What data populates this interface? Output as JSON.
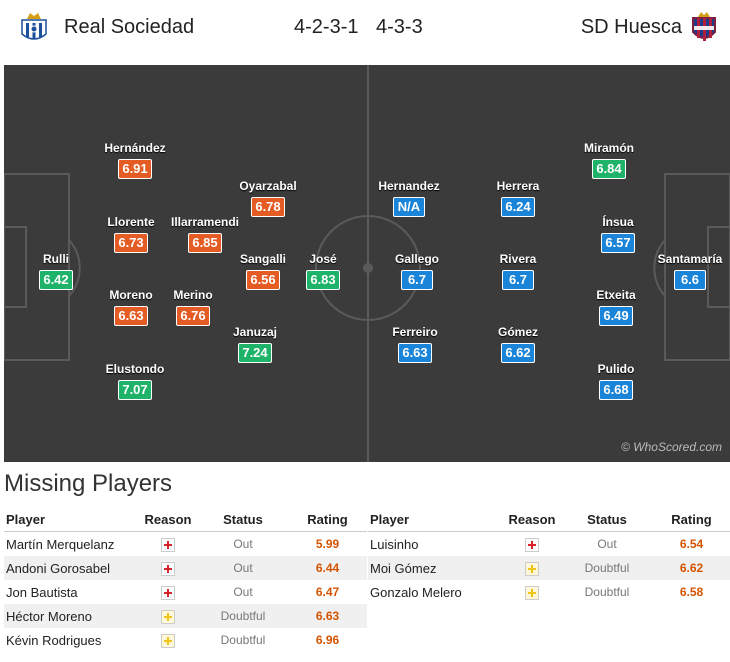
{
  "header": {
    "home_team": "Real Sociedad",
    "home_formation": "4-2-3-1",
    "away_team": "SD Huesca",
    "away_formation": "4-3-3",
    "home_crest_icon": "real-sociedad-crest-icon",
    "away_crest_icon": "sd-huesca-crest-icon"
  },
  "colors": {
    "pitch": "#3b3b3b",
    "rating_orange": "#e45b23",
    "rating_green": "#1fb369",
    "rating_blue": "#1a84d8"
  },
  "pitch": {
    "watermark": "© WhoScored.com",
    "home_players": [
      {
        "name": "Rulli",
        "rating": "6.42",
        "color": "green"
      },
      {
        "name": "Hernández",
        "rating": "6.91",
        "color": "orange"
      },
      {
        "name": "Llorente",
        "rating": "6.73",
        "color": "orange"
      },
      {
        "name": "Moreno",
        "rating": "6.63",
        "color": "orange"
      },
      {
        "name": "Elustondo",
        "rating": "7.07",
        "color": "green"
      },
      {
        "name": "Illarramendi",
        "rating": "6.85",
        "color": "orange"
      },
      {
        "name": "Merino",
        "rating": "6.76",
        "color": "orange"
      },
      {
        "name": "Oyarzabal",
        "rating": "6.78",
        "color": "orange"
      },
      {
        "name": "Sangalli",
        "rating": "6.56",
        "color": "orange"
      },
      {
        "name": "Januzaj",
        "rating": "7.24",
        "color": "green"
      },
      {
        "name": "José",
        "rating": "6.83",
        "color": "green"
      }
    ],
    "away_players": [
      {
        "name": "Hernandez",
        "rating": "N/A",
        "color": "blue"
      },
      {
        "name": "Gallego",
        "rating": "6.7",
        "color": "blue"
      },
      {
        "name": "Ferreiro",
        "rating": "6.63",
        "color": "blue"
      },
      {
        "name": "Herrera",
        "rating": "6.24",
        "color": "blue"
      },
      {
        "name": "Rivera",
        "rating": "6.7",
        "color": "blue"
      },
      {
        "name": "Gómez",
        "rating": "6.62",
        "color": "blue"
      },
      {
        "name": "Miramón",
        "rating": "6.84",
        "color": "green"
      },
      {
        "name": "Ínsua",
        "rating": "6.57",
        "color": "blue"
      },
      {
        "name": "Etxeita",
        "rating": "6.49",
        "color": "blue"
      },
      {
        "name": "Pulido",
        "rating": "6.68",
        "color": "blue"
      },
      {
        "name": "Santamaría",
        "rating": "6.6",
        "color": "blue"
      }
    ]
  },
  "missing": {
    "title": "Missing Players",
    "columns": {
      "player": "Player",
      "reason": "Reason",
      "status": "Status",
      "rating": "Rating"
    },
    "home": [
      {
        "player": "Martín Merquelanz",
        "reason": "injury-icon",
        "status": "Out",
        "rating": "5.99"
      },
      {
        "player": "Andoni Gorosabel",
        "reason": "injury-icon",
        "status": "Out",
        "rating": "6.44"
      },
      {
        "player": "Jon Bautista",
        "reason": "injury-icon",
        "status": "Out",
        "rating": "6.47"
      },
      {
        "player": "Héctor Moreno",
        "reason": "doubtful-icon",
        "status": "Doubtful",
        "rating": "6.63"
      },
      {
        "player": "Kévin Rodrigues",
        "reason": "doubtful-icon",
        "status": "Doubtful",
        "rating": "6.96"
      }
    ],
    "away": [
      {
        "player": "Luisinho",
        "reason": "injury-icon",
        "status": "Out",
        "rating": "6.54"
      },
      {
        "player": "Moi Gómez",
        "reason": "doubtful-icon",
        "status": "Doubtful",
        "rating": "6.62"
      },
      {
        "player": "Gonzalo Melero",
        "reason": "doubtful-icon",
        "status": "Doubtful",
        "rating": "6.58"
      }
    ]
  }
}
